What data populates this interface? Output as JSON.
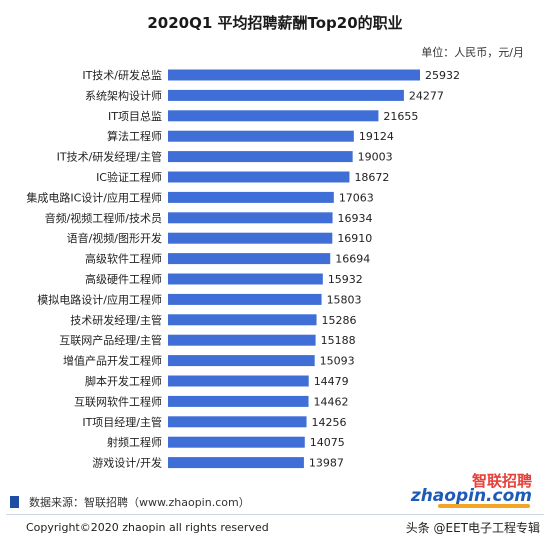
{
  "header": {
    "title": "2020Q1 平均招聘薪酬Top20的职业",
    "unit": "单位：人民币，元/月"
  },
  "chart_data": {
    "type": "bar",
    "orientation": "horizontal",
    "title": "2020Q1 平均招聘薪酬Top20的职业",
    "xlabel": "",
    "ylabel": "",
    "xlim": [
      0,
      26000
    ],
    "grid": false,
    "categories": [
      "IT技术/研发总监",
      "系统架构设计师",
      "IT项目总监",
      "算法工程师",
      "IT技术/研发经理/主管",
      "IC验证工程师",
      "集成电路IC设计/应用工程师",
      "音频/视频工程师/技术员",
      "语音/视频/图形开发",
      "高级软件工程师",
      "高级硬件工程师",
      "模拟电路设计/应用工程师",
      "技术研发经理/主管",
      "互联网产品经理/主管",
      "增值产品开发工程师",
      "脚本开发工程师",
      "互联网软件工程师",
      "IT项目经理/主管",
      "射频工程师",
      "游戏设计/开发"
    ],
    "values": [
      25932,
      24277,
      21655,
      19124,
      19003,
      18672,
      17063,
      16934,
      16910,
      16694,
      15932,
      15803,
      15286,
      15188,
      15093,
      14479,
      14462,
      14256,
      14075,
      13987
    ],
    "bar_color": "#3f6fd6"
  },
  "footer": {
    "source": "数据来源：智联招聘（www.zhaopin.com）",
    "copyright": "Copyright©2020 zhaopin all rights reserved",
    "watermark": "头条 @EET电子工程专辑"
  },
  "logo": {
    "cn": "智联招聘",
    "en": "zhaopin.com"
  }
}
